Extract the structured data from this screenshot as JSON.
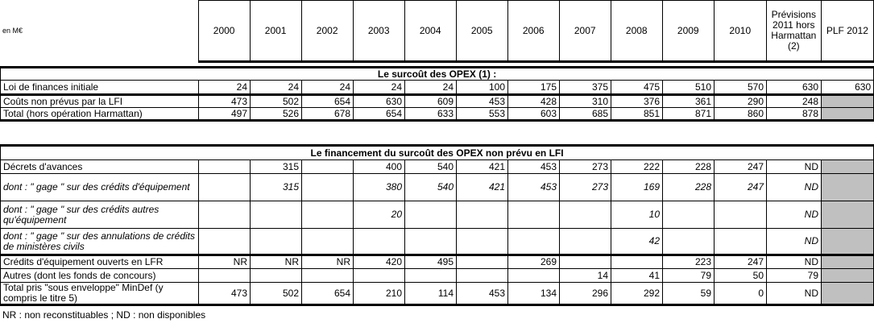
{
  "unit_label": "en M€",
  "columns": [
    "2000",
    "2001",
    "2002",
    "2003",
    "2004",
    "2005",
    "2006",
    "2007",
    "2008",
    "2009",
    "2010",
    "Prévisions 2011 hors Harmattan (2)",
    "PLF 2012"
  ],
  "sections": [
    {
      "title": "Le surcoût des OPEX (1) :",
      "rows": [
        {
          "label": "Loi de finances initiale",
          "values": [
            "24",
            "24",
            "24",
            "24",
            "24",
            "100",
            "175",
            "375",
            "475",
            "510",
            "570",
            "630",
            "630"
          ],
          "italic": false,
          "gray_last": false,
          "thick": true
        },
        {
          "label": "Coûts non prévus par la LFI",
          "values": [
            "473",
            "502",
            "654",
            "630",
            "609",
            "453",
            "428",
            "310",
            "376",
            "361",
            "290",
            "248",
            ""
          ],
          "italic": false,
          "gray_last": true,
          "thick": false
        },
        {
          "label": "Total (hors opération Harmattan)",
          "values": [
            "497",
            "526",
            "678",
            "654",
            "633",
            "553",
            "603",
            "685",
            "851",
            "871",
            "860",
            "878",
            ""
          ],
          "italic": false,
          "gray_last": true,
          "thick": true
        }
      ]
    },
    {
      "title": "Le financement du surcoût des OPEX non prévu en LFI",
      "rows": [
        {
          "label": "Décrets d'avances",
          "values": [
            "",
            "315",
            "",
            "400",
            "540",
            "421",
            "453",
            "273",
            "222",
            "228",
            "247",
            "ND",
            ""
          ],
          "italic": false,
          "gray_last": true,
          "thick": false
        },
        {
          "label": "dont : \" gage \" sur des crédits d'équipement",
          "values": [
            "",
            "315",
            "",
            "380",
            "540",
            "421",
            "453",
            "273",
            "169",
            "228",
            "247",
            "ND",
            ""
          ],
          "italic": true,
          "gray_last": true,
          "thick": false
        },
        {
          "label": "dont : \" gage \" sur des crédits autres qu'équipement",
          "values": [
            "",
            "",
            "",
            "20",
            "",
            "",
            "",
            "",
            "10",
            "",
            "",
            "ND",
            ""
          ],
          "italic": true,
          "gray_last": true,
          "thick": false
        },
        {
          "label": "dont : \" gage \" sur des annulations de crédits de ministères civils",
          "values": [
            "",
            "",
            "",
            "",
            "",
            "",
            "",
            "",
            "42",
            "",
            "",
            "ND",
            ""
          ],
          "italic": true,
          "gray_last": true,
          "thick": true
        },
        {
          "label": "Crédits d'équipement ouverts en LFR",
          "values": [
            "NR",
            "NR",
            "NR",
            "420",
            "495",
            "",
            "269",
            "",
            "",
            "223",
            "247",
            "ND",
            ""
          ],
          "italic": false,
          "gray_last": true,
          "thick": false
        },
        {
          "label": "Autres (dont les fonds de concours)",
          "values": [
            "",
            "",
            "",
            "",
            "",
            "",
            "",
            "14",
            "41",
            "79",
            "50",
            "79",
            ""
          ],
          "italic": false,
          "gray_last": true,
          "thick": false
        },
        {
          "label": "Total pris \"sous enveloppe\" MinDef (y compris le titre 5)",
          "values": [
            "473",
            "502",
            "654",
            "210",
            "114",
            "453",
            "134",
            "296",
            "292",
            "59",
            "0",
            "ND",
            ""
          ],
          "italic": false,
          "gray_last": true,
          "thick": true
        }
      ]
    }
  ],
  "footnote": "NR : non reconstituables ; ND : non disponibles",
  "colors": {
    "gray_cell": "#c0c0c0",
    "border": "#000000"
  }
}
